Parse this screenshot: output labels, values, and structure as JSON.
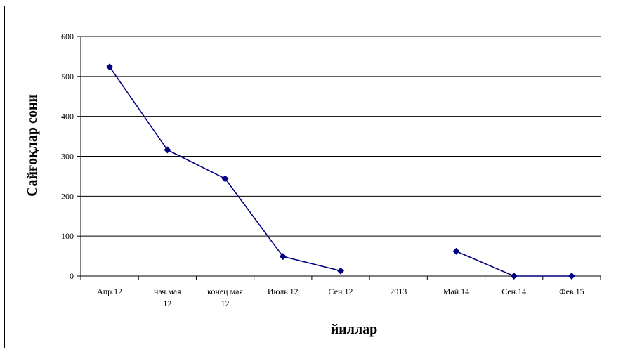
{
  "chart_data": {
    "type": "line",
    "title": "",
    "xlabel": "йиллар",
    "ylabel": "Сайғоқлар сони",
    "ylim": [
      0,
      600
    ],
    "yticks": [
      0,
      100,
      200,
      300,
      400,
      500,
      600
    ],
    "grid": true,
    "legend": "none",
    "categories": [
      "Апр.12",
      "нач.мая 12",
      "конец мая 12",
      "Июль 12",
      "Сен.12",
      "2013",
      "Май.14",
      "Сен.14",
      "Фев.15"
    ],
    "series": [
      {
        "values": [
          524,
          316,
          244,
          49,
          13,
          null,
          62,
          0,
          0
        ],
        "color": "#000080"
      }
    ]
  }
}
